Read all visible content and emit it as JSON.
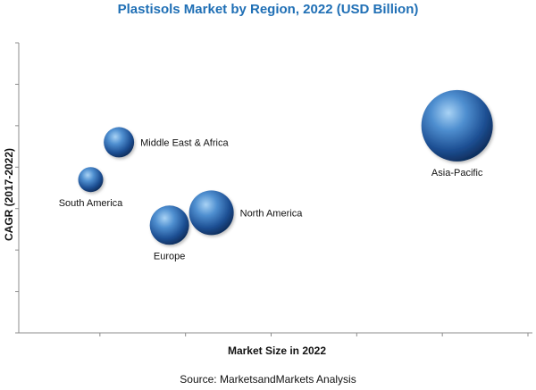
{
  "chart_data": {
    "type": "bubble",
    "title": "Plastisols Market by Region, 2022 (USD Billion)",
    "xlabel": "Market Size in 2022",
    "ylabel": "CAGR (2017-2022)",
    "xlim": [
      0,
      600
    ],
    "ylim": [
      0,
      7
    ],
    "grid": false,
    "series": [
      {
        "name": "Middle East & Africa",
        "x": 117,
        "y": 4.6,
        "size": 17
      },
      {
        "name": "South America",
        "x": 84,
        "y": 3.7,
        "size": 14
      },
      {
        "name": "Europe",
        "x": 176,
        "y": 2.6,
        "size": 22
      },
      {
        "name": "North America",
        "x": 225,
        "y": 2.9,
        "size": 25
      },
      {
        "name": "Asia-Pacific",
        "x": 512,
        "y": 5.0,
        "size": 40
      }
    ]
  },
  "source": "Source: MarketsandMarkets  Analysis"
}
